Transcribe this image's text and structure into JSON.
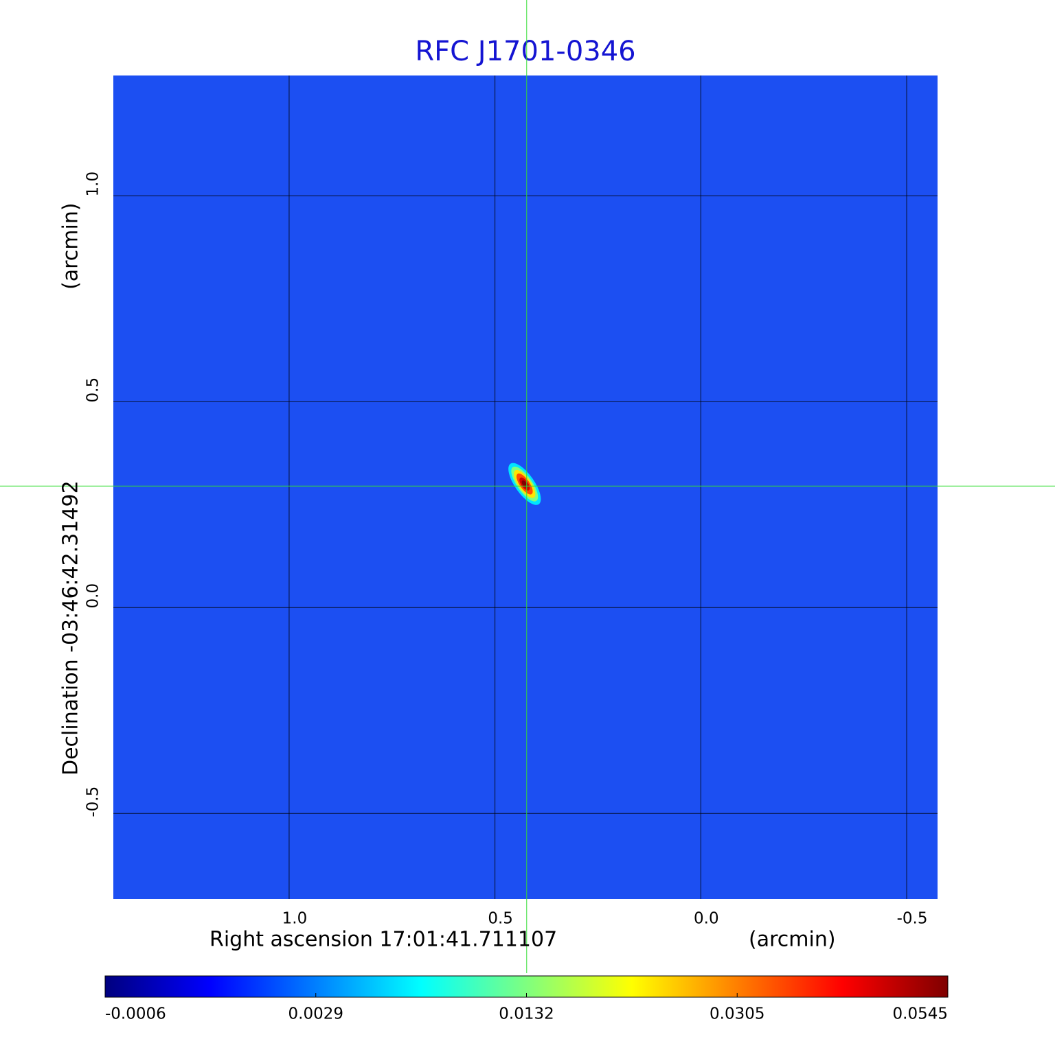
{
  "chart_data": {
    "type": "image",
    "title": "RFC J1701-0346",
    "x_label": "Right ascension  17:01:41.711107",
    "x_unit": "(arcmin)",
    "y_label": "Declination  -03:46:42.31492",
    "y_unit": "(arcmin)",
    "xlim": [
      1.427,
      -0.575
    ],
    "ylim": [
      -0.708,
      1.292
    ],
    "xticks": [
      {
        "value": 1,
        "label": "1.0"
      },
      0.5,
      {
        "value": 0,
        "label": "0.0"
      },
      -0.5
    ],
    "yticks": [
      -0.5,
      {
        "value": 0,
        "label": "0.0"
      },
      0.5,
      {
        "value": 1,
        "label": "1.0"
      }
    ],
    "grid": true,
    "background_color": "#1c4ff2",
    "crosshair": {
      "x": 0.423,
      "y": 0.295,
      "color": "#33dd33"
    },
    "source": {
      "x": 0.423,
      "y": 0.295,
      "value": 0.0545
    },
    "colorbar": {
      "ticks": [
        -0.0006,
        0.0029,
        0.0132,
        0.0305,
        0.0545
      ],
      "colormap": [
        "#00007f",
        "#0000ff",
        "#007fff",
        "#00ffff",
        "#7fff7f",
        "#ffff00",
        "#ff7f00",
        "#ff0000",
        "#7f0000"
      ]
    }
  }
}
